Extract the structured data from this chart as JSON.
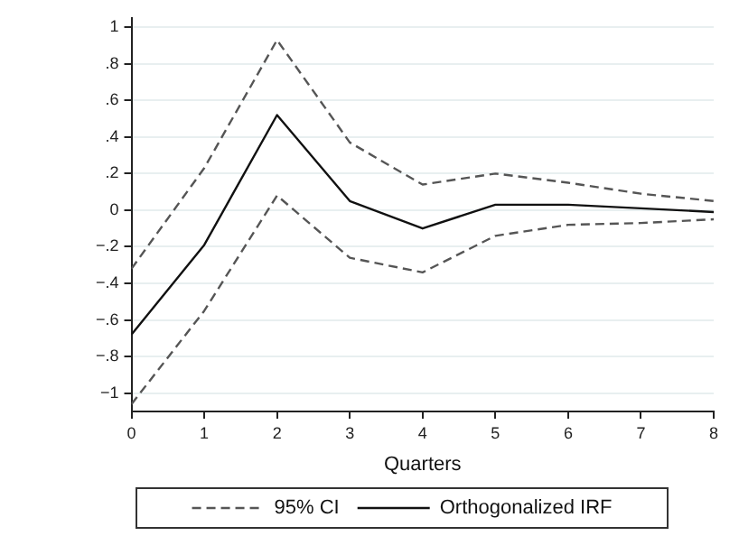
{
  "chart_data": {
    "type": "line",
    "xlabel": "Quarters",
    "x": [
      0,
      1,
      2,
      3,
      4,
      5,
      6,
      7,
      8
    ],
    "series": [
      {
        "name": "95% CI",
        "color": "#555555",
        "line_style": "dashed",
        "values": [
          -0.32,
          0.23,
          0.93,
          0.37,
          0.14,
          0.2,
          0.15,
          0.09,
          0.05
        ]
      },
      {
        "color": "#555555",
        "line_style": "dashed",
        "values": [
          -1.06,
          -0.55,
          0.08,
          -0.26,
          -0.34,
          -0.14,
          -0.08,
          -0.07,
          -0.05
        ]
      },
      {
        "name": "Orthogonalized IRF",
        "color": "#111111",
        "line_style": "solid",
        "values": [
          -0.68,
          -0.19,
          0.52,
          0.05,
          -0.1,
          0.03,
          0.03,
          0.01,
          -0.01
        ]
      }
    ],
    "xlim": [
      0,
      8
    ],
    "xticks": [
      0,
      1,
      2,
      3,
      4,
      5,
      6,
      7,
      8
    ],
    "ylim": [
      -1.1,
      1.05
    ],
    "yticks": [
      {
        "value": -1,
        "label": "−1"
      },
      {
        "value": -0.8,
        "label": "−.8"
      },
      {
        "value": -0.6,
        "label": "−.6"
      },
      {
        "value": -0.4,
        "label": "−.4"
      },
      {
        "value": -0.2,
        "label": "−.2"
      },
      0,
      {
        "value": 0.2,
        "label": ".2"
      },
      {
        "value": 0.4,
        "label": ".4"
      },
      {
        "value": 0.6,
        "label": ".6"
      },
      {
        "value": 0.8,
        "label": ".8"
      },
      1
    ],
    "grid": "y",
    "legend": "bottom",
    "marker": "none"
  }
}
